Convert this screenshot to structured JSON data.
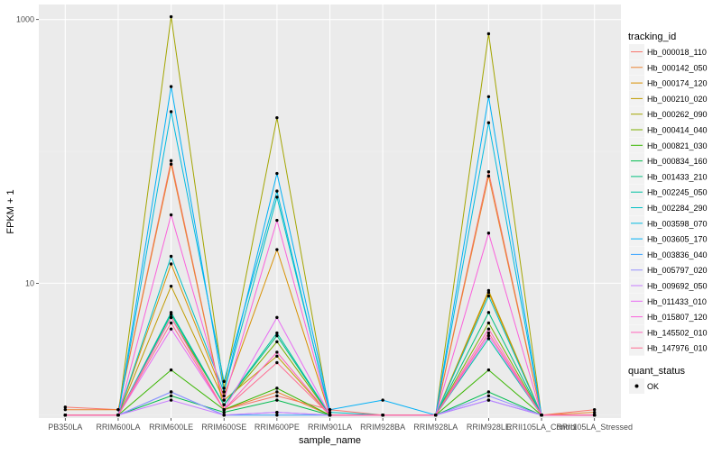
{
  "chart_data": {
    "type": "line",
    "xlabel": "sample_name",
    "ylabel": "FPKM + 1",
    "y_scale": "log10",
    "ylim": [
      0.95,
      1300
    ],
    "yticks": [
      1000,
      10
    ],
    "grid": true,
    "legend_position": "right",
    "categories": [
      "PB350LA",
      "RRIM600LA",
      "RRIM600LE",
      "RRIM600SE",
      "RRIM600PE",
      "RRIM901LA",
      "RRIM928BA",
      "RRIM928LA",
      "RRIM928LE",
      "RRII105LA_Control",
      "RRII105LA_Stressed"
    ],
    "legend": {
      "title": "tracking_id",
      "shape_title": "quant_status",
      "shape_label": "OK"
    },
    "series": [
      {
        "name": "Hb_000018_110",
        "color": "#F8766D",
        "values": [
          1.15,
          1.1,
          85,
          1.1,
          1.4,
          1.1,
          1.0,
          1.0,
          70,
          1.0,
          1.1
        ]
      },
      {
        "name": "Hb_000142_050",
        "color": "#EA8331",
        "values": [
          1.1,
          1.1,
          80,
          1.1,
          1.5,
          1.0,
          1.0,
          1.0,
          65,
          1.0,
          1.05
        ]
      },
      {
        "name": "Hb_000174_120",
        "color": "#D89000",
        "values": [
          1.0,
          1.0,
          14,
          1.4,
          18,
          1.0,
          1.0,
          1.0,
          8.5,
          1.0,
          1.0
        ]
      },
      {
        "name": "Hb_000210_020",
        "color": "#C09B00",
        "values": [
          1.0,
          1.0,
          9.5,
          1.3,
          2.8,
          1.0,
          1.0,
          1.0,
          8.8,
          1.0,
          1.0
        ]
      },
      {
        "name": "Hb_000262_090",
        "color": "#A3A500",
        "values": [
          1.0,
          1.0,
          1050,
          1.6,
          180,
          1.0,
          1.0,
          1.0,
          780,
          1.0,
          1.0
        ]
      },
      {
        "name": "Hb_000414_040",
        "color": "#7CAE00",
        "values": [
          1.0,
          1.0,
          5.5,
          1.2,
          3.6,
          1.0,
          1.0,
          1.0,
          5.0,
          1.0,
          1.0
        ]
      },
      {
        "name": "Hb_000821_030",
        "color": "#39B600",
        "values": [
          1.0,
          1.0,
          2.2,
          1.1,
          1.6,
          1.0,
          1.0,
          1.0,
          2.2,
          1.0,
          1.0
        ]
      },
      {
        "name": "Hb_000834_160",
        "color": "#00BB4E",
        "values": [
          1.0,
          1.0,
          1.4,
          1.05,
          1.3,
          1.0,
          1.0,
          1.0,
          1.5,
          1.0,
          1.0
        ]
      },
      {
        "name": "Hb_001433_210",
        "color": "#00BF7D",
        "values": [
          1.0,
          1.0,
          5.8,
          1.2,
          4.0,
          1.0,
          1.0,
          1.0,
          6.0,
          1.0,
          1.0
        ]
      },
      {
        "name": "Hb_002245_050",
        "color": "#00C1A3",
        "values": [
          1.0,
          1.0,
          6.0,
          1.2,
          4.2,
          1.0,
          1.0,
          1.0,
          3.8,
          1.0,
          1.0
        ]
      },
      {
        "name": "Hb_002284_290",
        "color": "#00BFC4",
        "values": [
          1.0,
          1.0,
          16,
          1.5,
          45,
          1.05,
          1.0,
          1.0,
          8.0,
          1.0,
          1.0
        ]
      },
      {
        "name": "Hb_003598_070",
        "color": "#00BAE0",
        "values": [
          1.0,
          1.0,
          200,
          1.8,
          50,
          1.0,
          1.0,
          1.0,
          165,
          1.0,
          1.0
        ]
      },
      {
        "name": "Hb_003605_170",
        "color": "#00B0F6",
        "values": [
          1.0,
          1.0,
          310,
          1.5,
          68,
          1.1,
          1.3,
          1.0,
          260,
          1.0,
          1.0
        ]
      },
      {
        "name": "Hb_003836_040",
        "color": "#35A2FF",
        "values": [
          1.0,
          1.0,
          1.5,
          1.0,
          1.0,
          1.0,
          1.0,
          1.0,
          1.3,
          1.0,
          1.0
        ]
      },
      {
        "name": "Hb_005797_020",
        "color": "#9590FF",
        "values": [
          1.0,
          1.0,
          1.5,
          1.0,
          1.05,
          1.0,
          1.0,
          1.0,
          1.4,
          1.0,
          1.0
        ]
      },
      {
        "name": "Hb_009692_050",
        "color": "#C77CFF",
        "values": [
          1.0,
          1.0,
          1.3,
          1.0,
          1.05,
          1.0,
          1.0,
          1.0,
          1.3,
          1.0,
          1.0
        ]
      },
      {
        "name": "Hb_011433_010",
        "color": "#E76BF3",
        "values": [
          1.0,
          1.0,
          4.5,
          1.1,
          5.5,
          1.0,
          1.0,
          1.0,
          4.0,
          1.0,
          1.0
        ]
      },
      {
        "name": "Hb_015807_120",
        "color": "#FA62DB",
        "values": [
          1.0,
          1.0,
          33,
          1.3,
          30,
          1.0,
          1.0,
          1.0,
          24,
          1.0,
          1.0
        ]
      },
      {
        "name": "Hb_145502_010",
        "color": "#FF62BC",
        "values": [
          1.0,
          1.0,
          5.5,
          1.1,
          3.0,
          1.0,
          1.0,
          1.0,
          4.5,
          1.0,
          1.0
        ]
      },
      {
        "name": "Hb_147976_010",
        "color": "#FF6C91",
        "values": [
          1.0,
          1.0,
          5.0,
          1.1,
          2.5,
          1.0,
          1.0,
          1.0,
          4.2,
          1.0,
          1.0
        ]
      }
    ]
  }
}
